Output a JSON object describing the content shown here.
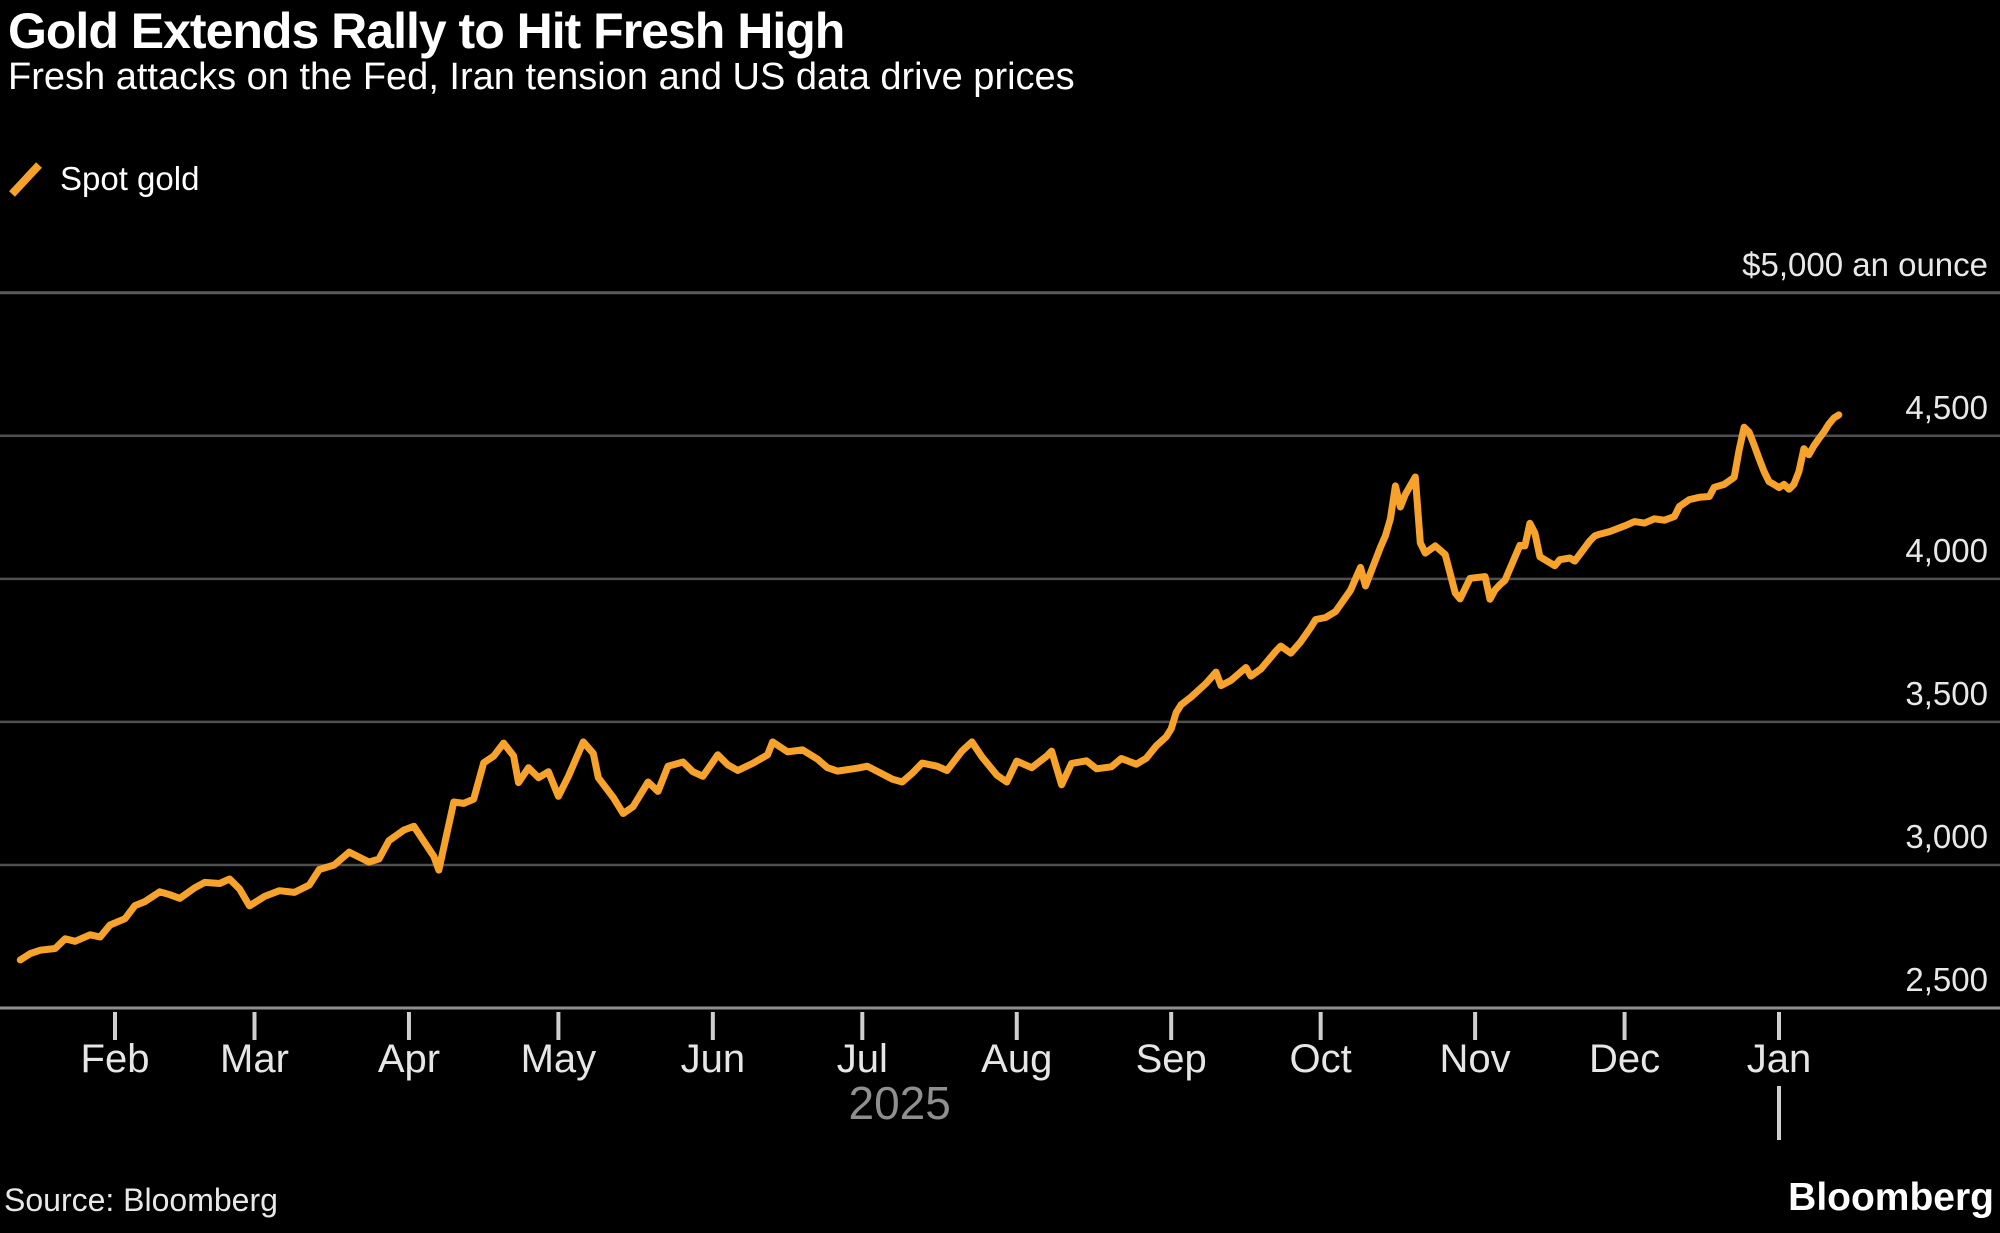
{
  "header": {
    "title": "Gold Extends Rally to Hit Fresh High",
    "subtitle": "Fresh attacks on the Fed, Iran tension and US data drive prices"
  },
  "legend": {
    "series_label": "Spot gold",
    "swatch_icon": "orange-slash-icon"
  },
  "footer": {
    "source": "Source: Bloomberg",
    "brand": "Bloomberg"
  },
  "colors": {
    "background": "#000000",
    "line": "#F7A32B",
    "gridline": "#4F4F4F",
    "top_gridline": "#5C5C5C",
    "axis_baseline": "#8F8F8F",
    "tick": "#CFCFCF",
    "label": "#E6E6E6",
    "year_label": "#8F8F8F",
    "text": "#FFFFFF"
  },
  "chart_data": {
    "type": "line",
    "title": "Gold Extends Rally to Hit Fresh High",
    "subtitle": "Fresh attacks on the Fed, Iran tension and US data drive prices",
    "unit": "USD per troy ounce",
    "legend_position": "top-left",
    "grid": "horizontal-only",
    "x": {
      "kind": "time",
      "day_index_origin": "2025-01-01",
      "domain_days": [
        12,
        377
      ],
      "month_ticks": [
        {
          "label": "Feb",
          "day": 31
        },
        {
          "label": "Mar",
          "day": 59
        },
        {
          "label": "Apr",
          "day": 90
        },
        {
          "label": "May",
          "day": 120
        },
        {
          "label": "Jun",
          "day": 151
        },
        {
          "label": "Jul",
          "day": 181
        },
        {
          "label": "Aug",
          "day": 212
        },
        {
          "label": "Sep",
          "day": 243
        },
        {
          "label": "Oct",
          "day": 273
        },
        {
          "label": "Nov",
          "day": 304
        },
        {
          "label": "Dec",
          "day": 334
        },
        {
          "label": "Jan",
          "day": 365
        }
      ],
      "year_label": "2025",
      "year_boundary_day": 365
    },
    "y": {
      "ylim": [
        2500,
        5000
      ],
      "grid_step": 500,
      "ticks": [
        {
          "value": 5000,
          "label": "$5,000 an ounce",
          "role": "unit-top"
        },
        {
          "value": 4500,
          "label": "4,500"
        },
        {
          "value": 4000,
          "label": "4,000"
        },
        {
          "value": 3500,
          "label": "3,500"
        },
        {
          "value": 3000,
          "label": "3,000"
        },
        {
          "value": 2500,
          "label": "2,500",
          "role": "baseline"
        }
      ]
    },
    "series": [
      {
        "name": "Spot gold",
        "color": "#F7A32B",
        "points": [
          [
            12,
            2668
          ],
          [
            14,
            2690
          ],
          [
            16,
            2702
          ],
          [
            19,
            2708
          ],
          [
            21,
            2742
          ],
          [
            23,
            2733
          ],
          [
            26,
            2756
          ],
          [
            28,
            2748
          ],
          [
            30,
            2790
          ],
          [
            33,
            2812
          ],
          [
            35,
            2858
          ],
          [
            37,
            2872
          ],
          [
            40,
            2906
          ],
          [
            42,
            2896
          ],
          [
            44,
            2883
          ],
          [
            47,
            2920
          ],
          [
            49,
            2939
          ],
          [
            52,
            2935
          ],
          [
            54,
            2951
          ],
          [
            56,
            2916
          ],
          [
            58,
            2857
          ],
          [
            61,
            2890
          ],
          [
            64,
            2910
          ],
          [
            67,
            2904
          ],
          [
            70,
            2930
          ],
          [
            72,
            2984
          ],
          [
            75,
            3000
          ],
          [
            78,
            3045
          ],
          [
            82,
            3010
          ],
          [
            84,
            3021
          ],
          [
            86,
            3085
          ],
          [
            89,
            3122
          ],
          [
            91,
            3135
          ],
          [
            95,
            3030
          ],
          [
            96,
            2982
          ],
          [
            99,
            3220
          ],
          [
            101,
            3215
          ],
          [
            103,
            3230
          ],
          [
            105,
            3357
          ],
          [
            107,
            3380
          ],
          [
            109,
            3426
          ],
          [
            111,
            3381
          ],
          [
            112,
            3288
          ],
          [
            114,
            3340
          ],
          [
            116,
            3305
          ],
          [
            118,
            3326
          ],
          [
            120,
            3240
          ],
          [
            122,
            3310
          ],
          [
            125,
            3430
          ],
          [
            127,
            3390
          ],
          [
            128,
            3305
          ],
          [
            131,
            3236
          ],
          [
            133,
            3180
          ],
          [
            135,
            3204
          ],
          [
            138,
            3290
          ],
          [
            140,
            3257
          ],
          [
            142,
            3345
          ],
          [
            145,
            3360
          ],
          [
            147,
            3326
          ],
          [
            149,
            3310
          ],
          [
            152,
            3385
          ],
          [
            154,
            3350
          ],
          [
            156,
            3330
          ],
          [
            159,
            3355
          ],
          [
            162,
            3385
          ],
          [
            163,
            3430
          ],
          [
            166,
            3395
          ],
          [
            169,
            3402
          ],
          [
            172,
            3370
          ],
          [
            174,
            3340
          ],
          [
            176,
            3328
          ],
          [
            180,
            3338
          ],
          [
            182,
            3345
          ],
          [
            187,
            3300
          ],
          [
            189,
            3290
          ],
          [
            191,
            3320
          ],
          [
            193,
            3356
          ],
          [
            196,
            3345
          ],
          [
            198,
            3330
          ],
          [
            201,
            3398
          ],
          [
            203,
            3430
          ],
          [
            205,
            3378
          ],
          [
            208,
            3314
          ],
          [
            210,
            3290
          ],
          [
            212,
            3363
          ],
          [
            215,
            3340
          ],
          [
            218,
            3380
          ],
          [
            219,
            3398
          ],
          [
            221,
            3280
          ],
          [
            223,
            3355
          ],
          [
            226,
            3364
          ],
          [
            228,
            3336
          ],
          [
            231,
            3343
          ],
          [
            233,
            3372
          ],
          [
            236,
            3352
          ],
          [
            238,
            3373
          ],
          [
            240,
            3416
          ],
          [
            242,
            3448
          ],
          [
            243,
            3476
          ],
          [
            244,
            3533
          ],
          [
            245,
            3560
          ],
          [
            247,
            3587
          ],
          [
            250,
            3635
          ],
          [
            252,
            3674
          ],
          [
            253,
            3627
          ],
          [
            255,
            3645
          ],
          [
            258,
            3690
          ],
          [
            259,
            3660
          ],
          [
            261,
            3685
          ],
          [
            264,
            3747
          ],
          [
            265,
            3765
          ],
          [
            267,
            3740
          ],
          [
            269,
            3780
          ],
          [
            271,
            3830
          ],
          [
            272,
            3858
          ],
          [
            274,
            3865
          ],
          [
            276,
            3886
          ],
          [
            279,
            3960
          ],
          [
            281,
            4040
          ],
          [
            282,
            3975
          ],
          [
            285,
            4110
          ],
          [
            286,
            4150
          ],
          [
            287,
            4210
          ],
          [
            288,
            4325
          ],
          [
            289,
            4251
          ],
          [
            290,
            4295
          ],
          [
            292,
            4356
          ],
          [
            293,
            4126
          ],
          [
            294,
            4090
          ],
          [
            296,
            4115
          ],
          [
            298,
            4085
          ],
          [
            300,
            3951
          ],
          [
            301,
            3930
          ],
          [
            303,
            4002
          ],
          [
            306,
            4008
          ],
          [
            307,
            3929
          ],
          [
            308,
            3961
          ],
          [
            309,
            3980
          ],
          [
            310,
            3995
          ],
          [
            313,
            4117
          ],
          [
            314,
            4115
          ],
          [
            315,
            4194
          ],
          [
            316,
            4160
          ],
          [
            317,
            4077
          ],
          [
            320,
            4046
          ],
          [
            321,
            4067
          ],
          [
            323,
            4073
          ],
          [
            324,
            4062
          ],
          [
            327,
            4132
          ],
          [
            328,
            4150
          ],
          [
            329,
            4156
          ],
          [
            331,
            4165
          ],
          [
            334,
            4185
          ],
          [
            336,
            4200
          ],
          [
            338,
            4195
          ],
          [
            340,
            4210
          ],
          [
            342,
            4205
          ],
          [
            344,
            4218
          ],
          [
            345,
            4253
          ],
          [
            347,
            4277
          ],
          [
            349,
            4285
          ],
          [
            351,
            4288
          ],
          [
            352,
            4320
          ],
          [
            354,
            4330
          ],
          [
            356,
            4355
          ],
          [
            357,
            4450
          ],
          [
            358,
            4530
          ],
          [
            359,
            4513
          ],
          [
            360,
            4468
          ],
          [
            361,
            4420
          ],
          [
            362,
            4375
          ],
          [
            363,
            4340
          ],
          [
            364,
            4330
          ],
          [
            365,
            4319
          ],
          [
            366,
            4330
          ],
          [
            367,
            4313
          ],
          [
            368,
            4330
          ],
          [
            369,
            4375
          ],
          [
            370,
            4455
          ],
          [
            371,
            4434
          ],
          [
            372,
            4465
          ],
          [
            373,
            4490
          ],
          [
            374,
            4513
          ],
          [
            375,
            4541
          ],
          [
            376,
            4562
          ],
          [
            377,
            4573
          ]
        ]
      }
    ]
  }
}
